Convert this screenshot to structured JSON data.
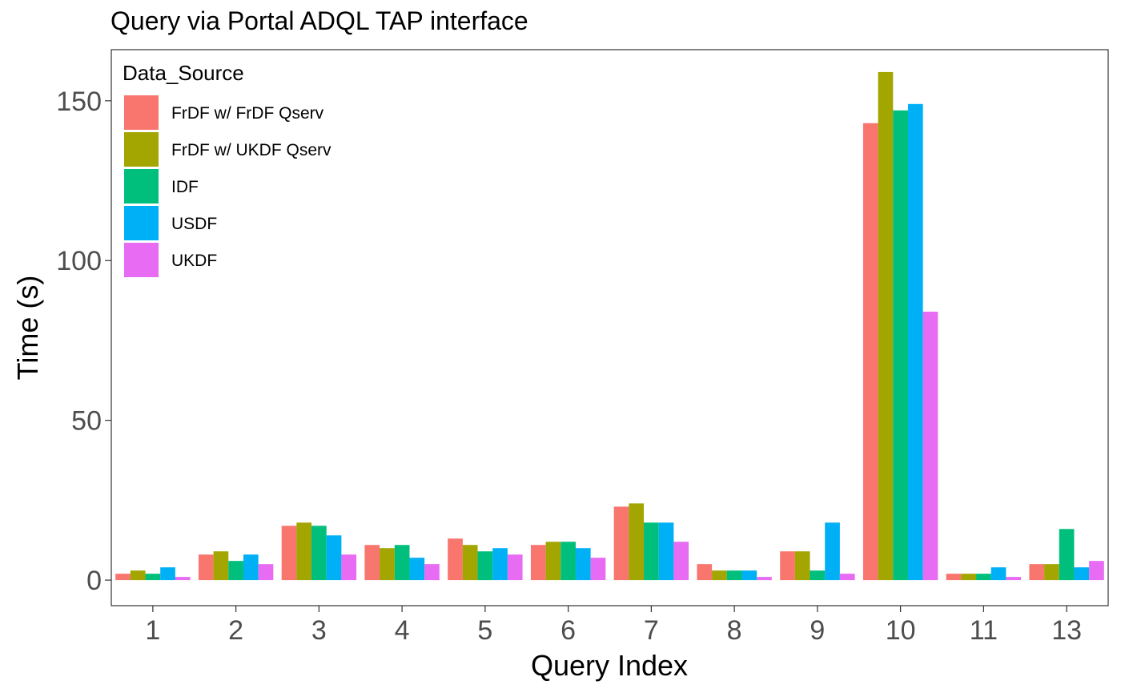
{
  "chart_data": {
    "type": "bar",
    "title": "Query via Portal ADQL TAP interface",
    "xlabel": "Query Index",
    "ylabel": "Time (s)",
    "categories": [
      "1",
      "2",
      "3",
      "4",
      "5",
      "6",
      "7",
      "8",
      "9",
      "10",
      "11",
      "13"
    ],
    "ylim": [
      -8,
      166
    ],
    "yticks": [
      0,
      50,
      100,
      150
    ],
    "grid": false,
    "legend": {
      "title": "Data_Source",
      "position": "top-left"
    },
    "series": [
      {
        "name": "FrDF w/ FrDF Qserv",
        "color": "#F8766D",
        "values": [
          2,
          8,
          17,
          11,
          13,
          11,
          23,
          5,
          9,
          143,
          2,
          5
        ]
      },
      {
        "name": "FrDF w/ UKDF Qserv",
        "color": "#A3A500",
        "values": [
          3,
          9,
          18,
          10,
          11,
          12,
          24,
          3,
          9,
          159,
          2,
          5
        ]
      },
      {
        "name": "IDF",
        "color": "#00BF7D",
        "values": [
          2,
          6,
          17,
          11,
          9,
          12,
          18,
          3,
          3,
          147,
          2,
          16
        ]
      },
      {
        "name": "USDF",
        "color": "#00B0F6",
        "values": [
          4,
          8,
          14,
          7,
          10,
          10,
          18,
          3,
          18,
          149,
          4,
          4
        ]
      },
      {
        "name": "UKDF",
        "color": "#E76BF3",
        "values": [
          1,
          5,
          8,
          5,
          8,
          7,
          12,
          1,
          2,
          84,
          1,
          6
        ]
      }
    ]
  }
}
